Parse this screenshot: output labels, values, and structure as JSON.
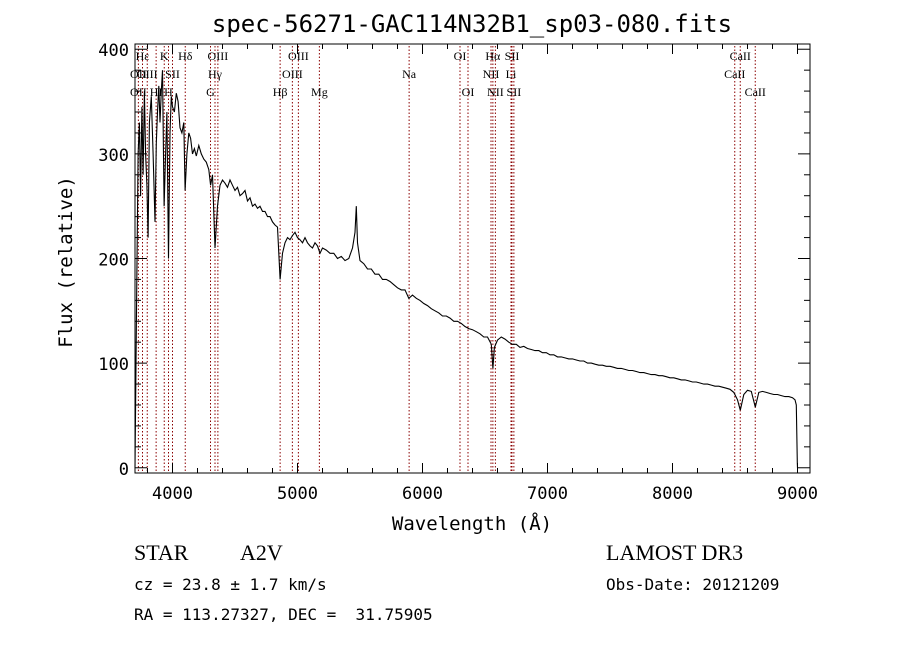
{
  "chart_data": {
    "type": "line",
    "title": "spec-56271-GAC114N32B1_sp03-080.fits",
    "xlabel": "Wavelength (Å)",
    "ylabel": "Flux (relative)",
    "xlim": [
      3700,
      9100
    ],
    "ylim": [
      -5,
      405
    ],
    "x_ticks": [
      {
        "value": 4000,
        "label": "4000"
      },
      {
        "value": 5000,
        "label": "5000"
      },
      {
        "value": 6000,
        "label": "6000"
      },
      {
        "value": 7000,
        "label": "7000"
      },
      {
        "value": 8000,
        "label": "8000"
      },
      {
        "value": 9000,
        "label": "9000"
      }
    ],
    "y_ticks": [
      {
        "value": 0,
        "label": "0"
      },
      {
        "value": 100,
        "label": "100"
      },
      {
        "value": 200,
        "label": "200"
      },
      {
        "value": 300,
        "label": "300"
      },
      {
        "value": 400,
        "label": "400"
      }
    ],
    "series": [
      {
        "name": "spectrum",
        "points": [
          [
            3700,
            0
          ],
          [
            3712,
            150
          ],
          [
            3725,
            300
          ],
          [
            3735,
            330
          ],
          [
            3745,
            260
          ],
          [
            3755,
            345
          ],
          [
            3765,
            280
          ],
          [
            3775,
            360
          ],
          [
            3785,
            300
          ],
          [
            3795,
            270
          ],
          [
            3805,
            220
          ],
          [
            3815,
            330
          ],
          [
            3830,
            355
          ],
          [
            3845,
            300
          ],
          [
            3860,
            235
          ],
          [
            3870,
            310
          ],
          [
            3880,
            340
          ],
          [
            3890,
            365
          ],
          [
            3900,
            330
          ],
          [
            3910,
            360
          ],
          [
            3920,
            380
          ],
          [
            3933,
            250
          ],
          [
            3945,
            300
          ],
          [
            3955,
            340
          ],
          [
            3968,
            200
          ],
          [
            3980,
            320
          ],
          [
            3990,
            355
          ],
          [
            4000,
            345
          ],
          [
            4015,
            340
          ],
          [
            4030,
            358
          ],
          [
            4045,
            350
          ],
          [
            4060,
            325
          ],
          [
            4075,
            320
          ],
          [
            4090,
            330
          ],
          [
            4101,
            265
          ],
          [
            4115,
            300
          ],
          [
            4130,
            320
          ],
          [
            4145,
            315
          ],
          [
            4160,
            300
          ],
          [
            4175,
            305
          ],
          [
            4190,
            298
          ],
          [
            4210,
            308
          ],
          [
            4230,
            300
          ],
          [
            4250,
            295
          ],
          [
            4270,
            292
          ],
          [
            4290,
            285
          ],
          [
            4305,
            270
          ],
          [
            4320,
            280
          ],
          [
            4340,
            210
          ],
          [
            4360,
            250
          ],
          [
            4380,
            270
          ],
          [
            4400,
            275
          ],
          [
            4420,
            272
          ],
          [
            4440,
            268
          ],
          [
            4460,
            275
          ],
          [
            4480,
            270
          ],
          [
            4500,
            265
          ],
          [
            4520,
            268
          ],
          [
            4540,
            260
          ],
          [
            4560,
            262
          ],
          [
            4580,
            265
          ],
          [
            4600,
            255
          ],
          [
            4620,
            258
          ],
          [
            4640,
            250
          ],
          [
            4660,
            252
          ],
          [
            4680,
            248
          ],
          [
            4700,
            250
          ],
          [
            4720,
            245
          ],
          [
            4740,
            245
          ],
          [
            4760,
            240
          ],
          [
            4780,
            240
          ],
          [
            4800,
            235
          ],
          [
            4820,
            232
          ],
          [
            4840,
            230
          ],
          [
            4861,
            180
          ],
          [
            4880,
            205
          ],
          [
            4900,
            215
          ],
          [
            4920,
            220
          ],
          [
            4940,
            218
          ],
          [
            4960,
            222
          ],
          [
            4980,
            225
          ],
          [
            5000,
            220
          ],
          [
            5020,
            218
          ],
          [
            5040,
            215
          ],
          [
            5060,
            220
          ],
          [
            5080,
            215
          ],
          [
            5100,
            212
          ],
          [
            5120,
            210
          ],
          [
            5140,
            215
          ],
          [
            5160,
            212
          ],
          [
            5180,
            205
          ],
          [
            5200,
            210
          ],
          [
            5230,
            208
          ],
          [
            5260,
            205
          ],
          [
            5290,
            205
          ],
          [
            5320,
            200
          ],
          [
            5350,
            202
          ],
          [
            5380,
            198
          ],
          [
            5410,
            200
          ],
          [
            5440,
            210
          ],
          [
            5460,
            225
          ],
          [
            5470,
            250
          ],
          [
            5480,
            215
          ],
          [
            5500,
            198
          ],
          [
            5530,
            195
          ],
          [
            5560,
            190
          ],
          [
            5590,
            190
          ],
          [
            5620,
            185
          ],
          [
            5650,
            185
          ],
          [
            5680,
            180
          ],
          [
            5710,
            180
          ],
          [
            5740,
            178
          ],
          [
            5770,
            175
          ],
          [
            5800,
            172
          ],
          [
            5830,
            170
          ],
          [
            5860,
            170
          ],
          [
            5890,
            162
          ],
          [
            5920,
            165
          ],
          [
            5950,
            162
          ],
          [
            5980,
            160
          ],
          [
            6010,
            157
          ],
          [
            6040,
            155
          ],
          [
            6070,
            152
          ],
          [
            6100,
            150
          ],
          [
            6130,
            148
          ],
          [
            6160,
            145
          ],
          [
            6190,
            145
          ],
          [
            6220,
            143
          ],
          [
            6250,
            140
          ],
          [
            6280,
            140
          ],
          [
            6310,
            138
          ],
          [
            6340,
            135
          ],
          [
            6370,
            133
          ],
          [
            6400,
            132
          ],
          [
            6430,
            130
          ],
          [
            6460,
            128
          ],
          [
            6490,
            125
          ],
          [
            6520,
            125
          ],
          [
            6550,
            118
          ],
          [
            6563,
            95
          ],
          [
            6575,
            115
          ],
          [
            6600,
            122
          ],
          [
            6630,
            125
          ],
          [
            6660,
            123
          ],
          [
            6690,
            120
          ],
          [
            6720,
            118
          ],
          [
            6750,
            118
          ],
          [
            6780,
            115
          ],
          [
            6810,
            116
          ],
          [
            6840,
            114
          ],
          [
            6870,
            113
          ],
          [
            6900,
            112
          ],
          [
            6930,
            112
          ],
          [
            6960,
            110
          ],
          [
            6990,
            110
          ],
          [
            7020,
            108
          ],
          [
            7050,
            108
          ],
          [
            7080,
            106
          ],
          [
            7110,
            106
          ],
          [
            7140,
            105
          ],
          [
            7170,
            104
          ],
          [
            7200,
            104
          ],
          [
            7230,
            103
          ],
          [
            7260,
            102
          ],
          [
            7290,
            102
          ],
          [
            7320,
            100
          ],
          [
            7350,
            100
          ],
          [
            7380,
            99
          ],
          [
            7410,
            98
          ],
          [
            7440,
            98
          ],
          [
            7470,
            97
          ],
          [
            7500,
            97
          ],
          [
            7530,
            96
          ],
          [
            7560,
            95
          ],
          [
            7590,
            95
          ],
          [
            7620,
            94
          ],
          [
            7650,
            93
          ],
          [
            7680,
            93
          ],
          [
            7710,
            92
          ],
          [
            7740,
            91
          ],
          [
            7770,
            91
          ],
          [
            7800,
            90
          ],
          [
            7830,
            89
          ],
          [
            7860,
            89
          ],
          [
            7890,
            88
          ],
          [
            7920,
            88
          ],
          [
            7950,
            87
          ],
          [
            7980,
            86
          ],
          [
            8010,
            86
          ],
          [
            8040,
            85
          ],
          [
            8070,
            84
          ],
          [
            8100,
            84
          ],
          [
            8130,
            83
          ],
          [
            8160,
            82
          ],
          [
            8190,
            82
          ],
          [
            8220,
            81
          ],
          [
            8250,
            80
          ],
          [
            8280,
            80
          ],
          [
            8310,
            79
          ],
          [
            8340,
            78
          ],
          [
            8370,
            78
          ],
          [
            8400,
            77
          ],
          [
            8430,
            76
          ],
          [
            8460,
            75
          ],
          [
            8490,
            72
          ],
          [
            8520,
            65
          ],
          [
            8542,
            55
          ],
          [
            8570,
            70
          ],
          [
            8600,
            74
          ],
          [
            8630,
            73
          ],
          [
            8662,
            58
          ],
          [
            8690,
            72
          ],
          [
            8720,
            73
          ],
          [
            8750,
            72
          ],
          [
            8780,
            71
          ],
          [
            8810,
            70
          ],
          [
            8840,
            70
          ],
          [
            8870,
            69
          ],
          [
            8900,
            68
          ],
          [
            8930,
            68
          ],
          [
            8960,
            67
          ],
          [
            8980,
            65
          ],
          [
            8990,
            60
          ],
          [
            8998,
            5
          ],
          [
            9000,
            0
          ]
        ]
      }
    ],
    "lines": [
      {
        "x": 3727,
        "labels": [
          "OII",
          "OII"
        ],
        "rows": [
          2,
          3
        ],
        "color": "#8b0000"
      },
      {
        "x": 3760,
        "labels": [
          "Hε"
        ],
        "rows": [
          1
        ],
        "color": "#8b0000"
      },
      {
        "x": 3798,
        "labels": [
          "OIII"
        ],
        "rows": [
          2
        ],
        "color": "#8b0000"
      },
      {
        "x": 3869,
        "labels": [
          "HI"
        ],
        "rows": [
          3
        ],
        "color": "#8b0000"
      },
      {
        "x": 3934,
        "labels": [
          "K"
        ],
        "rows": [
          1
        ],
        "color": "#8b0000"
      },
      {
        "x": 3968,
        "labels": [
          "H"
        ],
        "rows": [
          3
        ],
        "color": "#8b0000"
      },
      {
        "x": 4000,
        "labels": [
          "SII"
        ],
        "rows": [
          2
        ],
        "color": "#8b0000"
      },
      {
        "x": 4102,
        "labels": [
          "Hδ"
        ],
        "rows": [
          1
        ],
        "color": "#8b0000"
      },
      {
        "x": 4304,
        "labels": [
          "G"
        ],
        "rows": [
          3
        ],
        "color": "#8b0000"
      },
      {
        "x": 4340,
        "labels": [
          "Hγ"
        ],
        "rows": [
          2
        ],
        "color": "#8b0000"
      },
      {
        "x": 4363,
        "labels": [
          "OIII"
        ],
        "rows": [
          1
        ],
        "color": "#8b0000"
      },
      {
        "x": 4861,
        "labels": [
          "Hβ"
        ],
        "rows": [
          3
        ],
        "color": "#8b0000"
      },
      {
        "x": 4959,
        "labels": [
          "OIII"
        ],
        "rows": [
          2
        ],
        "color": "#8b0000"
      },
      {
        "x": 5007,
        "labels": [
          "OIII"
        ],
        "rows": [
          1
        ],
        "color": "#8b0000"
      },
      {
        "x": 5175,
        "labels": [
          "Mg"
        ],
        "rows": [
          3
        ],
        "color": "#8b0000"
      },
      {
        "x": 5893,
        "labels": [
          "Na"
        ],
        "rows": [
          2
        ],
        "color": "#8b0000"
      },
      {
        "x": 6300,
        "labels": [
          "OI"
        ],
        "rows": [
          1
        ],
        "color": "#8b0000"
      },
      {
        "x": 6364,
        "labels": [
          "OI"
        ],
        "rows": [
          3
        ],
        "color": "#8b0000"
      },
      {
        "x": 6548,
        "labels": [
          "NII"
        ],
        "rows": [
          2
        ],
        "color": "#8b0000"
      },
      {
        "x": 6563,
        "labels": [
          "Hα"
        ],
        "rows": [
          1
        ],
        "color": "#8b0000"
      },
      {
        "x": 6583,
        "labels": [
          "NII"
        ],
        "rows": [
          3
        ],
        "color": "#8b0000"
      },
      {
        "x": 6708,
        "labels": [
          "Li"
        ],
        "rows": [
          2
        ],
        "color": "#8b0000"
      },
      {
        "x": 6716,
        "labels": [
          "SII"
        ],
        "rows": [
          1
        ],
        "color": "#8b0000"
      },
      {
        "x": 6731,
        "labels": [
          "SII"
        ],
        "rows": [
          3
        ],
        "color": "#8b0000"
      },
      {
        "x": 8498,
        "labels": [
          "CaII"
        ],
        "rows": [
          2
        ],
        "color": "#8b0000"
      },
      {
        "x": 8542,
        "labels": [
          "CaII"
        ],
        "rows": [
          1
        ],
        "color": "#8b0000"
      },
      {
        "x": 8662,
        "labels": [
          "CaII"
        ],
        "rows": [
          3
        ],
        "color": "#8b0000"
      }
    ],
    "line_color": "#000000",
    "marker_color": "#8b0000"
  },
  "info": {
    "object_class": "STAR",
    "subclass": "A2V",
    "survey": "LAMOST DR3",
    "cz": "cz = 23.8 ± 1.7 km/s",
    "obs_date": "Obs-Date: 20121209",
    "coords": "RA = 113.27327, DEC =  31.75905"
  }
}
